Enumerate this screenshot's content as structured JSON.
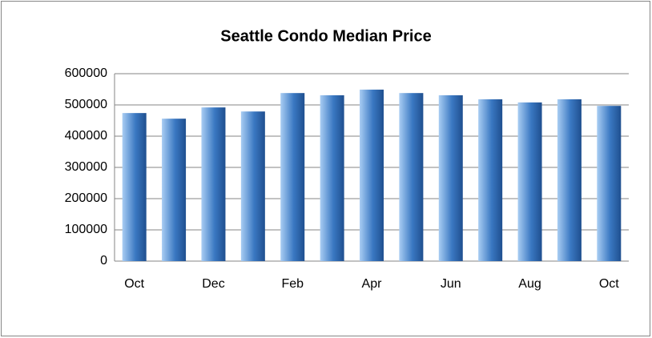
{
  "chart_data": {
    "type": "bar",
    "title": "Seattle Condo Median Price",
    "categories": [
      "Oct",
      null,
      "Dec",
      null,
      "Feb",
      null,
      "Apr",
      null,
      "Jun",
      null,
      "Aug",
      null,
      "Oct"
    ],
    "values": [
      474000,
      456000,
      492000,
      479000,
      538000,
      531000,
      549000,
      538000,
      531000,
      518000,
      508000,
      518000,
      497000
    ],
    "color": "#3a78c2",
    "ylim": [
      0,
      600000
    ],
    "yticks": [
      0,
      100000,
      200000,
      300000,
      400000,
      500000,
      600000
    ],
    "grid": true
  }
}
